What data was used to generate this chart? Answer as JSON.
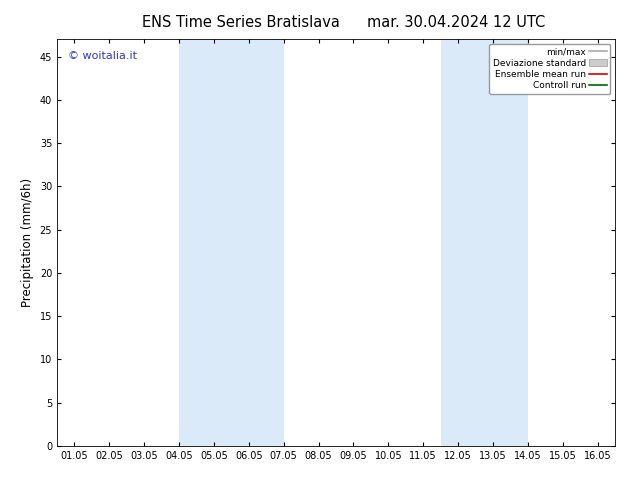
{
  "title_left": "ENS Time Series Bratislava",
  "title_right": "mar. 30.04.2024 12 UTC",
  "ylabel": "Precipitation (mm/6h)",
  "watermark": "© woitalia.it",
  "watermark_color": "#3333cc",
  "background_color": "#ffffff",
  "plot_bg_color": "#ffffff",
  "ylim": [
    0,
    47
  ],
  "yticks": [
    0,
    5,
    10,
    15,
    20,
    25,
    30,
    35,
    40,
    45
  ],
  "xtick_labels": [
    "01.05",
    "02.05",
    "03.05",
    "04.05",
    "05.05",
    "06.05",
    "07.05",
    "08.05",
    "09.05",
    "10.05",
    "11.05",
    "12.05",
    "13.05",
    "14.05",
    "15.05",
    "16.05"
  ],
  "x_values": [
    0,
    1,
    2,
    3,
    4,
    5,
    6,
    7,
    8,
    9,
    10,
    11,
    12,
    13,
    14,
    15
  ],
  "shade_bands": [
    {
      "xmin": 3.0,
      "xmax": 6.0
    },
    {
      "xmin": 10.5,
      "xmax": 13.0
    }
  ],
  "shade_color": "#daeaf8",
  "legend_items": [
    {
      "label": "min/max",
      "type": "line",
      "color": "#aaaaaa",
      "lw": 1.2
    },
    {
      "label": "Deviazione standard",
      "type": "bar",
      "color": "#cccccc"
    },
    {
      "label": "Ensemble mean run",
      "type": "line",
      "color": "#dd0000",
      "lw": 1.2
    },
    {
      "label": "Controll run",
      "type": "line",
      "color": "#006600",
      "lw": 1.2
    }
  ],
  "title_fontsize": 10.5,
  "tick_fontsize": 7,
  "ylabel_fontsize": 8.5,
  "watermark_fontsize": 8
}
